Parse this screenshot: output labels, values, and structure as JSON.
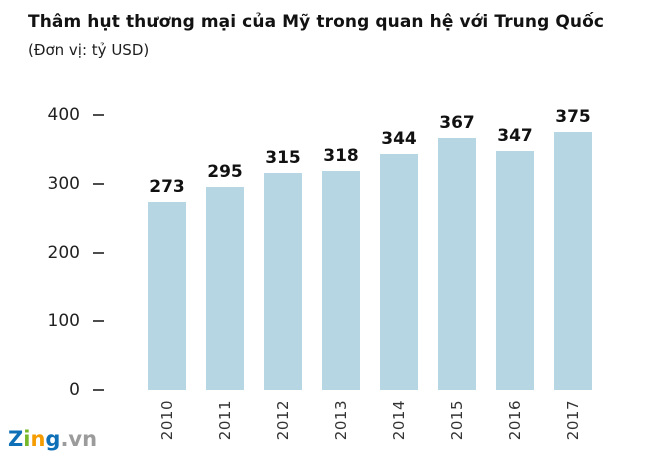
{
  "title": "Thâm hụt thương mại của Mỹ trong quan hệ với Trung Quốc",
  "subtitle": "(Đơn vị: tỷ USD)",
  "chart_data": {
    "type": "bar",
    "categories": [
      "2010",
      "2011",
      "2012",
      "2013",
      "2014",
      "2015",
      "2016",
      "2017"
    ],
    "values": [
      273,
      295,
      315,
      318,
      344,
      367,
      347,
      375
    ],
    "title": "Thâm hụt thương mại của Mỹ trong quan hệ với Trung Quốc",
    "xlabel": "",
    "ylabel": "tỷ USD",
    "ylim": [
      0,
      400
    ],
    "yticks": [
      400,
      300,
      200,
      100,
      0
    ],
    "grid": false,
    "legend": false,
    "bar_color": "#b7d6e4",
    "value_label_color": "#111111",
    "axis_label_color": "#333333"
  },
  "logo": {
    "letters": [
      {
        "char": "Z",
        "color": "#0f70b7"
      },
      {
        "char": "i",
        "color": "#76b82a"
      },
      {
        "char": "n",
        "color": "#f59c00"
      },
      {
        "char": "g",
        "color": "#0f70b7"
      }
    ],
    "suffix": ".vn",
    "suffix_color": "#9b9b9b"
  }
}
